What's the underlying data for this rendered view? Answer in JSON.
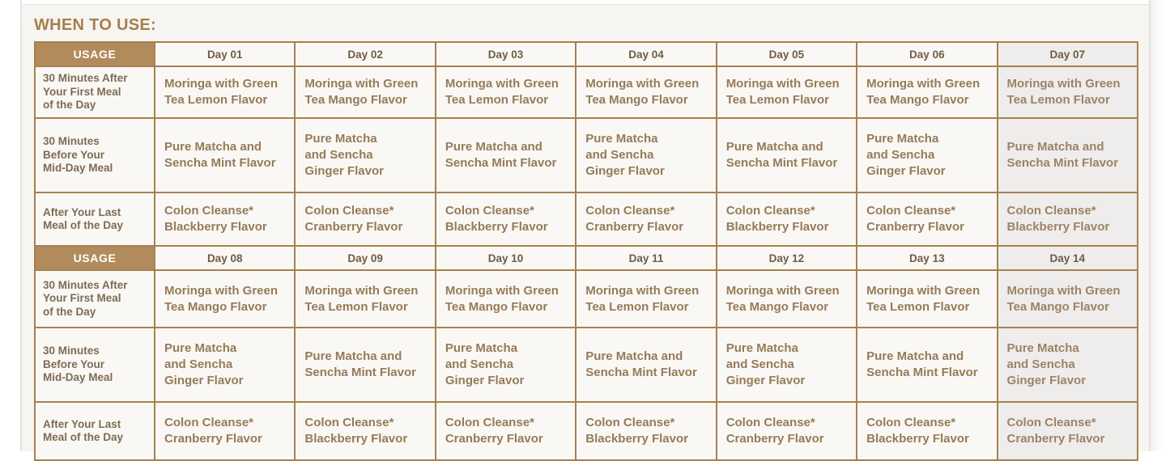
{
  "title": "WHEN TO USE:",
  "colors": {
    "accent_brown": "#a87e4d",
    "header_bg": "#b28b5c",
    "border": "#a6814e",
    "flavor_text": "#957b58",
    "label_text": "#7d6b53"
  },
  "tables": [
    {
      "usage_label": "USAGE",
      "day_headers": [
        "Day 01",
        "Day 02",
        "Day 03",
        "Day 04",
        "Day 05",
        "Day 06",
        "Day 07"
      ],
      "rows": [
        {
          "label": "30 Minutes After\nYour First Meal\nof the Day",
          "cells": [
            "Moringa with Green\nTea Lemon Flavor",
            "Moringa with Green\nTea Mango Flavor",
            "Moringa with Green\nTea Lemon Flavor",
            "Moringa with Green\nTea Mango Flavor",
            "Moringa with Green\nTea Lemon Flavor",
            "Moringa with Green\nTea Mango Flavor",
            "Moringa with Green\nTea Lemon Flavor"
          ]
        },
        {
          "label": "30 Minutes\nBefore Your\nMid-Day Meal",
          "cells": [
            "Pure Matcha and\nSencha Mint Flavor",
            "Pure Matcha\nand Sencha\nGinger Flavor",
            "Pure Matcha and\nSencha Mint Flavor",
            "Pure Matcha\nand Sencha\nGinger Flavor",
            "Pure Matcha and\nSencha Mint Flavor",
            "Pure Matcha\nand Sencha\nGinger Flavor",
            "Pure Matcha and\nSencha Mint Flavor"
          ]
        },
        {
          "label": "After Your Last\nMeal of the Day",
          "cells": [
            "Colon Cleanse*\nBlackberry Flavor",
            "Colon Cleanse*\nCranberry Flavor",
            "Colon Cleanse*\nBlackberry Flavor",
            "Colon Cleanse*\nCranberry Flavor",
            "Colon Cleanse*\nBlackberry Flavor",
            "Colon Cleanse*\nCranberry Flavor",
            "Colon Cleanse*\nBlackberry Flavor"
          ]
        }
      ]
    },
    {
      "usage_label": "USAGE",
      "day_headers": [
        "Day 08",
        "Day 09",
        "Day 10",
        "Day 11",
        "Day 12",
        "Day 13",
        "Day 14"
      ],
      "rows": [
        {
          "label": "30 Minutes After\nYour First Meal\nof the Day",
          "cells": [
            "Moringa with Green\nTea Mango Flavor",
            "Moringa with Green\nTea Lemon Flavor",
            "Moringa with Green\nTea Mango Flavor",
            "Moringa with Green\nTea Lemon Flavor",
            "Moringa with Green\nTea Mango Flavor",
            "Moringa with Green\nTea Lemon Flavor",
            "Moringa with Green\nTea Mango Flavor"
          ]
        },
        {
          "label": "30 Minutes\nBefore Your\nMid-Day Meal",
          "cells": [
            "Pure Matcha\nand Sencha\nGinger Flavor",
            "Pure Matcha and\nSencha Mint Flavor",
            "Pure Matcha\nand Sencha\nGinger Flavor",
            "Pure Matcha and\nSencha Mint Flavor",
            "Pure Matcha\nand Sencha\nGinger Flavor",
            "Pure Matcha and\nSencha Mint Flavor",
            "Pure Matcha\nand Sencha\nGinger Flavor"
          ]
        },
        {
          "label": "After Your Last\nMeal of the Day",
          "cells": [
            "Colon Cleanse*\nCranberry Flavor",
            "Colon Cleanse*\nBlackberry Flavor",
            "Colon Cleanse*\nCranberry Flavor",
            "Colon Cleanse*\nBlackberry Flavor",
            "Colon Cleanse*\nCranberry Flavor",
            "Colon Cleanse*\nBlackberry Flavor",
            "Colon Cleanse*\nCranberry Flavor"
          ]
        }
      ]
    }
  ]
}
